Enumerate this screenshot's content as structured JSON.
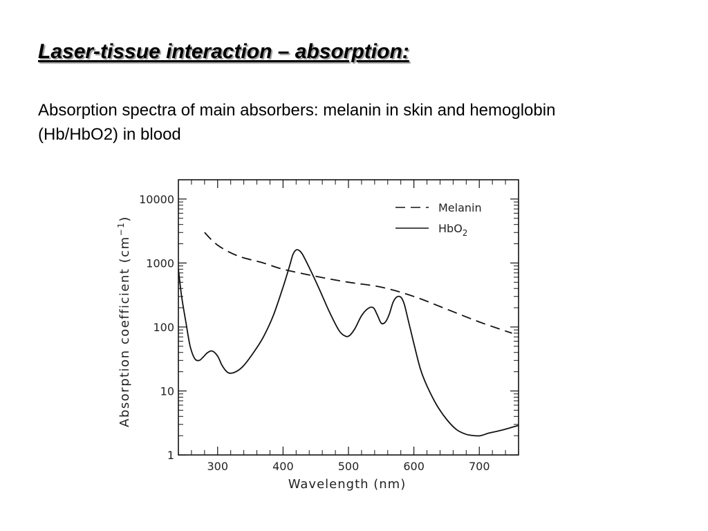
{
  "slide": {
    "title": "Laser-tissue interaction – absorption:",
    "subtitle": "Absorption spectra of main absorbers: melanin in skin and hemoglobin (Hb/HbO2) in blood"
  },
  "chart_data": {
    "type": "line",
    "title": "",
    "xlabel": "Wavelength (nm)",
    "ylabel": "Absorption coefficient (cm",
    "ylabel_sup": "−1",
    "ylabel_tail": ")",
    "xlim": [
      240,
      760
    ],
    "ylim": [
      1,
      20000
    ],
    "yscale": "log",
    "xticks": [
      300,
      400,
      500,
      600,
      700
    ],
    "yticks": [
      1,
      10,
      100,
      1000,
      10000
    ],
    "yticklabels": [
      "1",
      "10",
      "100",
      "1000",
      "10000"
    ],
    "grid": false,
    "legend_position": "top-right",
    "colors": {
      "line": "#111111",
      "axis": "#111111"
    },
    "series": [
      {
        "name": "Melanin",
        "sub": "",
        "style": "dashed",
        "x": [
          280,
          300,
          330,
          370,
          400,
          450,
          500,
          550,
          600,
          650,
          700,
          750
        ],
        "y": [
          3000,
          1900,
          1300,
          1000,
          800,
          620,
          500,
          420,
          300,
          190,
          120,
          80
        ]
      },
      {
        "name": "HbO",
        "sub": "2",
        "style": "solid",
        "x": [
          240,
          245,
          252,
          258,
          265,
          272,
          278,
          285,
          292,
          300,
          306,
          312,
          318,
          328,
          340,
          355,
          370,
          385,
          400,
          410,
          415,
          420,
          425,
          430,
          440,
          455,
          470,
          485,
          495,
          502,
          510,
          520,
          530,
          538,
          544,
          550,
          556,
          562,
          568,
          573,
          578,
          582,
          586,
          592,
          600,
          610,
          620,
          635,
          650,
          665,
          680,
          693,
          702,
          715,
          735,
          760
        ],
        "y": [
          800,
          300,
          110,
          50,
          32,
          30,
          34,
          40,
          42,
          35,
          26,
          21,
          19,
          20,
          25,
          40,
          70,
          150,
          420,
          900,
          1350,
          1600,
          1560,
          1350,
          850,
          400,
          180,
          90,
          72,
          74,
          95,
          150,
          195,
          200,
          155,
          115,
          118,
          155,
          240,
          290,
          300,
          275,
          215,
          120,
          55,
          22,
          12,
          6,
          3.6,
          2.5,
          2.1,
          2.0,
          2.0,
          2.2,
          2.45,
          2.9
        ]
      }
    ]
  }
}
